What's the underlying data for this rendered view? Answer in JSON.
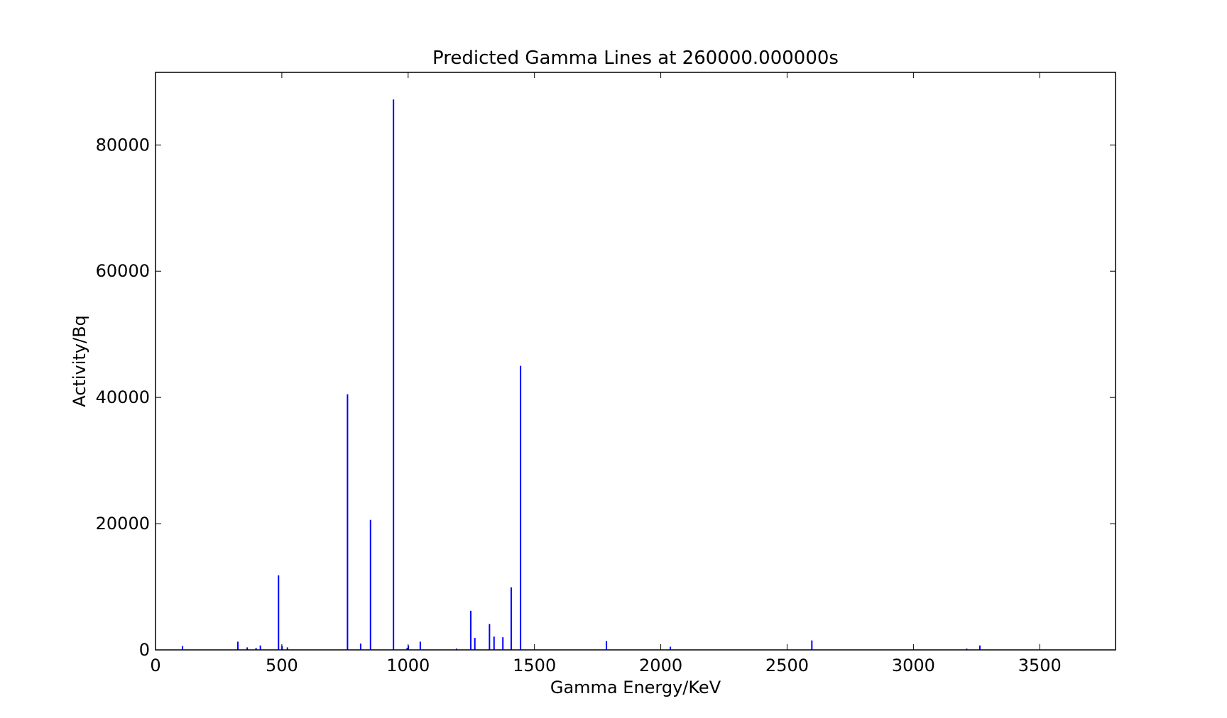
{
  "chart_data": {
    "type": "bar",
    "title": "Predicted Gamma Lines at 260000.000000s",
    "xlabel": "Gamma Energy/KeV",
    "ylabel": "Activity/Bq",
    "xlim": [
      0,
      3800
    ],
    "ylim": [
      0,
      91500
    ],
    "xticks": [
      0,
      500,
      1000,
      1500,
      2000,
      2500,
      3000,
      3500
    ],
    "xtick_labels": [
      "0",
      "500",
      "1000",
      "1500",
      "2000",
      "2500",
      "3000",
      "3500"
    ],
    "yticks": [
      0,
      20000,
      40000,
      60000,
      80000
    ],
    "ytick_labels": [
      "0",
      "20000",
      "40000",
      "60000",
      "80000"
    ],
    "grid": false,
    "legend": "none",
    "colors": {
      "series": "#0000ff",
      "axes": "#000000",
      "background": "#ffffff"
    },
    "series": [
      {
        "x": [
          107,
          326,
          363,
          398,
          415,
          487,
          501,
          522,
          760,
          812,
          851,
          942,
          996,
          1001,
          1048,
          1192,
          1248,
          1264,
          1322,
          1340,
          1375,
          1408,
          1445,
          1785,
          2038,
          2598,
          3211,
          3263
        ],
        "values": [
          600,
          1300,
          400,
          300,
          700,
          11800,
          600,
          400,
          40500,
          1000,
          20600,
          87200,
          300,
          700,
          1300,
          200,
          6200,
          1900,
          4100,
          2100,
          2000,
          9900,
          45000,
          1400,
          500,
          1500,
          200,
          700
        ]
      }
    ]
  }
}
